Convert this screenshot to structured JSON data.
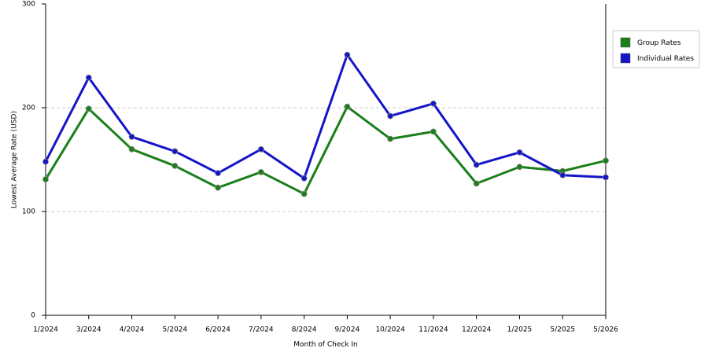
{
  "chart_data": {
    "type": "line",
    "x_label": "Month of Check In",
    "y_label": "Lowest Average Rate (USD)",
    "categories": [
      "1/2024",
      "3/2024",
      "4/2024",
      "5/2024",
      "6/2024",
      "7/2024",
      "8/2024",
      "9/2024",
      "10/2024",
      "11/2024",
      "12/2024",
      "1/2025",
      "5/2025",
      "5/2026"
    ],
    "series": [
      {
        "name": "Group Rates",
        "color": "#1a7f1a",
        "values": [
          131,
          199,
          160,
          144,
          123,
          138,
          117,
          201,
          170,
          177,
          127,
          143,
          139,
          149
        ]
      },
      {
        "name": "Individual Rates",
        "color": "#1414c8",
        "values": [
          148,
          229,
          172,
          158,
          137,
          160,
          132,
          251,
          192,
          204,
          145,
          157,
          135,
          133
        ]
      }
    ],
    "ylim": [
      0,
      300
    ],
    "yticks": [
      0,
      100,
      200,
      300
    ],
    "grid": true,
    "legend": "right"
  }
}
